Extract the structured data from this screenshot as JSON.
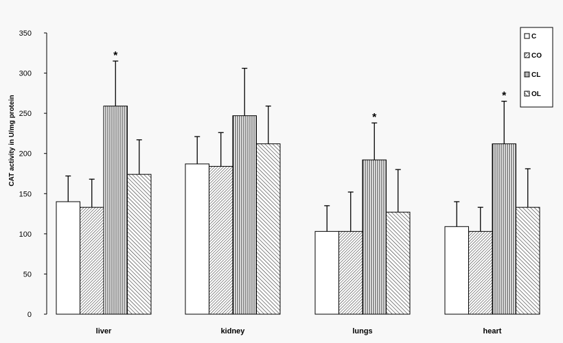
{
  "chart_data": {
    "type": "bar",
    "title": "",
    "xlabel": "",
    "ylabel": "CAT activity in U/mg protein",
    "ylim": [
      0,
      350
    ],
    "yticks": [
      0,
      50,
      100,
      150,
      200,
      250,
      300,
      350
    ],
    "categories": [
      "liver",
      "kidney",
      "lungs",
      "heart"
    ],
    "grid": false,
    "legend_position": "top-right",
    "series": [
      {
        "name": "C",
        "values": [
          140,
          187,
          103,
          109
        ],
        "errors": [
          32,
          34,
          32,
          31
        ],
        "pattern": "white"
      },
      {
        "name": "CO",
        "values": [
          133,
          184,
          103,
          103
        ],
        "errors": [
          35,
          42,
          49,
          30
        ],
        "pattern": "diag-dense"
      },
      {
        "name": "CL",
        "values": [
          259,
          247,
          192,
          212
        ],
        "errors": [
          56,
          59,
          46,
          53
        ],
        "pattern": "vertical"
      },
      {
        "name": "OL",
        "values": [
          174,
          212,
          127,
          133
        ],
        "errors": [
          43,
          47,
          53,
          48
        ],
        "pattern": "diag-light"
      }
    ],
    "significance": {
      "marker": "*",
      "series": "CL",
      "categories": [
        "liver",
        "lungs",
        "heart"
      ]
    }
  }
}
